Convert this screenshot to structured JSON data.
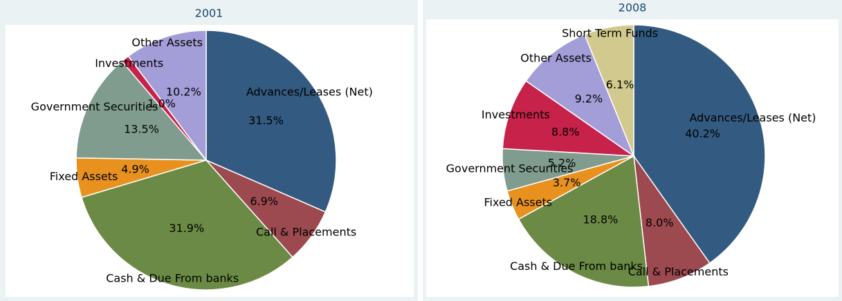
{
  "chart_data": [
    {
      "type": "pie",
      "title": "2001",
      "categories": [
        "Advances/Leases (Net)",
        "Call & Placements",
        "Cash & Due From banks",
        "Fixed Assets",
        "Government Securities",
        "Investments",
        "Other Assets"
      ],
      "values": [
        31.5,
        6.9,
        31.9,
        4.9,
        13.5,
        1.0,
        10.2
      ],
      "value_labels": [
        "31.5%",
        "6.9%",
        "31.9%",
        "4.9%",
        "13.5%",
        "1.0%",
        "10.2%"
      ],
      "colors": [
        "#335a80",
        "#9c4a4f",
        "#6b8a45",
        "#e8911e",
        "#7f9c8e",
        "#c6224a",
        "#a49ed8"
      ]
    },
    {
      "type": "pie",
      "title": "2008",
      "categories": [
        "Advances/Leases (Net)",
        "Call & Placements",
        "Cash & Due From banks",
        "Fixed Assets",
        "Government Securities",
        "Investments",
        "Other Assets",
        "Short Term Funds"
      ],
      "values": [
        40.2,
        8.0,
        18.8,
        3.7,
        5.2,
        8.8,
        9.2,
        6.1
      ],
      "value_labels": [
        "40.2%",
        "8.0%",
        "18.8%",
        "3.7%",
        "5.2%",
        "8.8%",
        "9.2%",
        "6.1%"
      ],
      "colors": [
        "#335a80",
        "#9c4a4f",
        "#6b8a45",
        "#e8911e",
        "#7f9c8e",
        "#c6224a",
        "#a49ed8",
        "#d2c98e"
      ]
    }
  ]
}
